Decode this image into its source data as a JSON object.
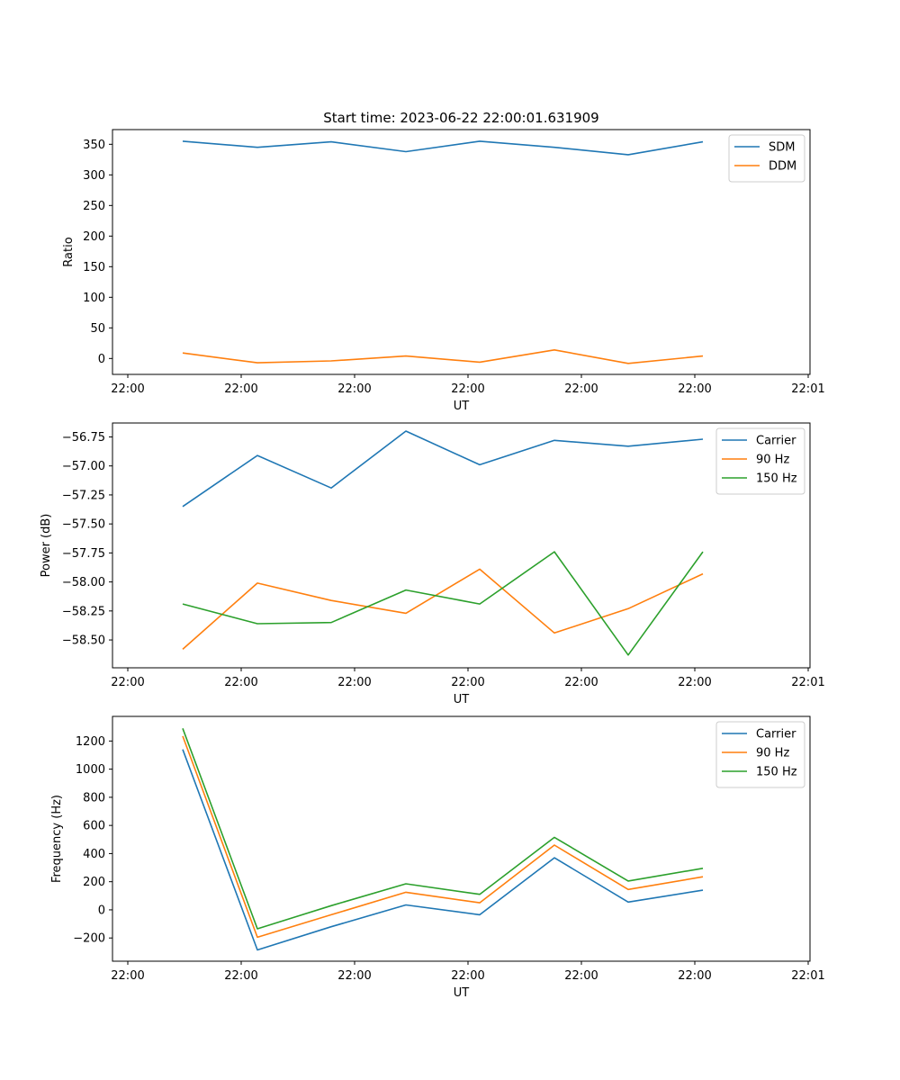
{
  "chart_data": [
    {
      "type": "line",
      "title": "Start time: 2023-06-22 22:00:01.631909",
      "xlabel": "UT",
      "ylabel": "Ratio",
      "x_tick_labels": [
        "22:00",
        "22:00",
        "22:00",
        "22:00",
        "22:00",
        "22:00",
        "22:01"
      ],
      "y_ticks": [
        0,
        50,
        100,
        150,
        200,
        250,
        300,
        350
      ],
      "y_tick_labels": [
        "0",
        "50",
        "100",
        "150",
        "200",
        "250",
        "300",
        "350"
      ],
      "ylim": [
        -26,
        374
      ],
      "legend_position": "top-right",
      "series": [
        {
          "name": "SDM",
          "color": "#1f77b4",
          "values": [
            355,
            345,
            354,
            338,
            355,
            345,
            333,
            354
          ]
        },
        {
          "name": "DDM",
          "color": "#ff7f0e",
          "values": [
            9,
            -7,
            -4,
            4,
            -6,
            14,
            -8,
            4
          ]
        }
      ]
    },
    {
      "type": "line",
      "title": "",
      "xlabel": "UT",
      "ylabel": "Power (dB)",
      "x_tick_labels": [
        "22:00",
        "22:00",
        "22:00",
        "22:00",
        "22:00",
        "22:00",
        "22:01"
      ],
      "y_ticks": [
        -58.5,
        -58.25,
        -58.0,
        -57.75,
        -57.5,
        -57.25,
        -57.0,
        -56.75
      ],
      "y_tick_labels": [
        "−58.50",
        "−58.25",
        "−58.00",
        "−57.75",
        "−57.50",
        "−57.25",
        "−57.00",
        "−56.75"
      ],
      "ylim": [
        -58.74,
        -56.63
      ],
      "legend_position": "top-right",
      "series": [
        {
          "name": "Carrier",
          "color": "#1f77b4",
          "values": [
            -57.35,
            -56.91,
            -57.19,
            -56.7,
            -56.99,
            -56.78,
            -56.83,
            -56.77
          ]
        },
        {
          "name": "90 Hz",
          "color": "#ff7f0e",
          "values": [
            -58.58,
            -58.01,
            -58.16,
            -58.27,
            -57.89,
            -58.44,
            -58.23,
            -57.93
          ]
        },
        {
          "name": "150 Hz",
          "color": "#2ca02c",
          "values": [
            -58.19,
            -58.36,
            -58.35,
            -58.07,
            -58.19,
            -57.74,
            -58.63,
            -57.74
          ]
        }
      ]
    },
    {
      "type": "line",
      "title": "",
      "xlabel": "UT",
      "ylabel": "Frequency (Hz)",
      "x_tick_labels": [
        "22:00",
        "22:00",
        "22:00",
        "22:00",
        "22:00",
        "22:00",
        "22:01"
      ],
      "y_ticks": [
        -200,
        0,
        200,
        400,
        600,
        800,
        1000,
        1200
      ],
      "y_tick_labels": [
        "−200",
        "0",
        "200",
        "400",
        "600",
        "800",
        "1000",
        "1200"
      ],
      "ylim": [
        -365,
        1375
      ],
      "legend_position": "top-right",
      "series": [
        {
          "name": "Carrier",
          "color": "#1f77b4",
          "values": [
            1140,
            -285,
            -120,
            35,
            -35,
            370,
            55,
            140
          ]
        },
        {
          "name": "90 Hz",
          "color": "#ff7f0e",
          "values": [
            1235,
            -195,
            -35,
            125,
            50,
            460,
            145,
            235
          ]
        },
        {
          "name": "150 Hz",
          "color": "#2ca02c",
          "values": [
            1290,
            -135,
            30,
            185,
            110,
            515,
            205,
            295
          ]
        }
      ]
    }
  ]
}
